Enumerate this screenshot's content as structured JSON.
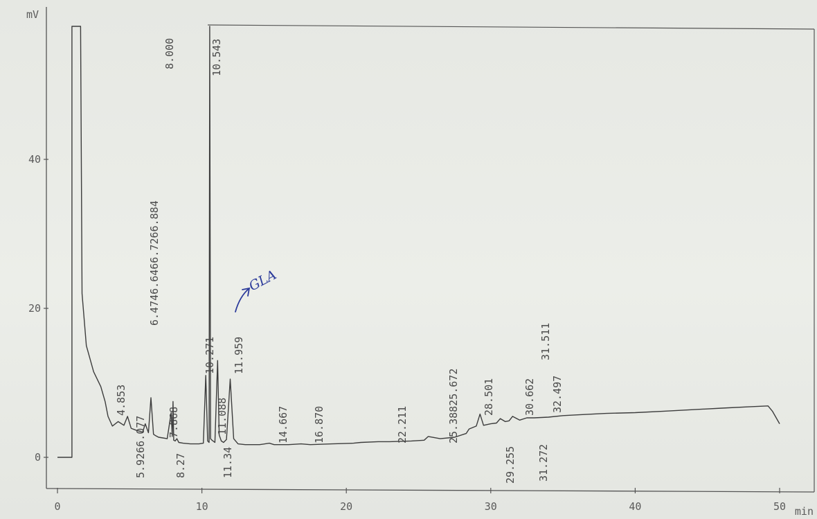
{
  "chart_data": {
    "type": "line",
    "title": "",
    "xlabel": "min",
    "ylabel": "mV",
    "xlim": [
      0,
      50
    ],
    "ylim": [
      0,
      58
    ],
    "x_ticks": [
      0,
      10,
      20,
      30,
      40,
      50
    ],
    "y_ticks": [
      0,
      20,
      40
    ],
    "grid": false,
    "series": [
      {
        "x": [
          0,
          1.0,
          1.0,
          1.6,
          1.7,
          2.0,
          2.5,
          3.0,
          3.3,
          3.5,
          3.8,
          4.2,
          4.6,
          4.85,
          5.1,
          5.5,
          5.9,
          6.08,
          6.3,
          6.47,
          6.65,
          6.8,
          7.0,
          7.3,
          7.6,
          7.87,
          7.95,
          8.0,
          8.05,
          8.15,
          8.27,
          8.4,
          8.7,
          9.2,
          9.8,
          10.1,
          10.27,
          10.4,
          10.5,
          10.543,
          10.6,
          10.7,
          10.9,
          11.09,
          11.2,
          11.34,
          11.5,
          11.7,
          11.959,
          12.2,
          12.5,
          13.0,
          14.0,
          14.667,
          15.0,
          16.0,
          16.87,
          17.5,
          19.0,
          20.5,
          21.0,
          22.211,
          23.0,
          24.5,
          25.388,
          25.672,
          26.5,
          27.5,
          28.3,
          28.501,
          29.0,
          29.255,
          29.5,
          30.0,
          30.4,
          30.662,
          31.0,
          31.272,
          31.511,
          32.0,
          32.497,
          33.0,
          34.0,
          35.0,
          36.0,
          38.0,
          40.0,
          42.0,
          44.0,
          46.0,
          48.0,
          49.2,
          49.5,
          50.0
        ],
        "y": [
          0,
          0,
          58,
          58,
          22,
          15,
          11.5,
          9.5,
          7.5,
          5.5,
          4.2,
          4.8,
          4.3,
          5.5,
          3.9,
          3.6,
          3.4,
          4.5,
          3.3,
          8.0,
          3.1,
          2.9,
          2.7,
          2.6,
          2.5,
          6.0,
          2.8,
          7.5,
          2.3,
          2.2,
          2.5,
          2.0,
          1.9,
          1.8,
          1.8,
          1.9,
          11.0,
          2.2,
          2.0,
          58,
          2.5,
          2.3,
          2.0,
          13.0,
          3.0,
          2.2,
          2.0,
          2.4,
          10.5,
          2.5,
          1.8,
          1.7,
          1.7,
          1.9,
          1.7,
          1.7,
          1.8,
          1.7,
          1.8,
          1.9,
          2.0,
          2.1,
          2.1,
          2.2,
          2.3,
          2.8,
          2.5,
          2.7,
          3.2,
          3.8,
          4.2,
          5.8,
          4.3,
          4.5,
          4.6,
          5.2,
          4.8,
          4.9,
          5.5,
          5.0,
          5.3,
          5.3,
          5.4,
          5.6,
          5.7,
          5.9,
          6.0,
          6.2,
          6.4,
          6.6,
          6.8,
          6.9,
          6.2,
          4.5
        ]
      }
    ],
    "peak_labels": [
      "4.853",
      "5.9266.077",
      "6.4746.6466.7266.884",
      "7.868",
      "8.000",
      "8.27",
      "10.271",
      "10.543",
      "11.34",
      "11.088",
      "11.959",
      "14.667",
      "16.870",
      "22.211",
      "25.38825.672",
      "28.501",
      "29.255",
      "30.662",
      "31.272",
      "31.511",
      "32.497"
    ],
    "annotations": [
      "GLA"
    ]
  }
}
